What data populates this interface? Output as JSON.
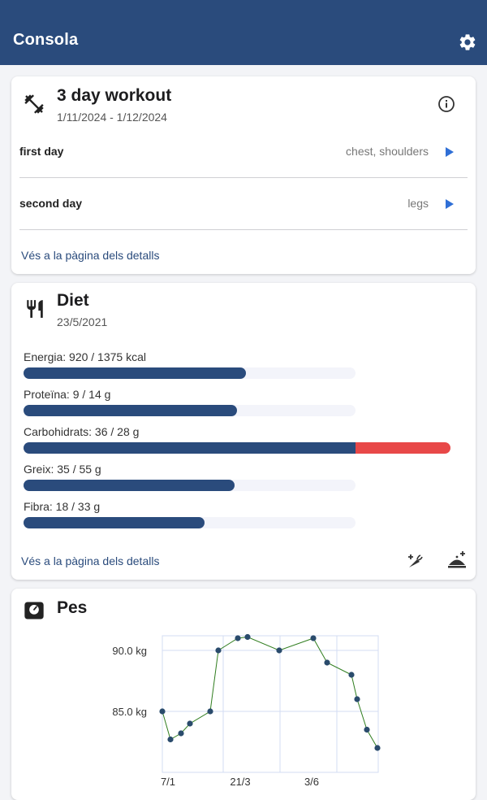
{
  "appbar": {
    "title": "Consola",
    "settings_icon": "gear-icon"
  },
  "workout": {
    "title": "3 day workout",
    "dates": "1/11/2024 - 1/12/2024",
    "icon": "dumbbell-icon",
    "info_icon": "info-icon",
    "days": [
      {
        "name": "first day",
        "muscles": "chest, shoulders"
      },
      {
        "name": "second day",
        "muscles": "legs"
      }
    ],
    "link": "Vés a la pàgina dels detalls"
  },
  "diet": {
    "title": "Diet",
    "date": "23/5/2021",
    "icon": "utensils-icon",
    "nutrients": [
      {
        "label": "Energia: 920 / 1375 kcal",
        "value": 920,
        "target": 1375
      },
      {
        "label": "Proteïna: 9 / 14 g",
        "value": 9,
        "target": 14
      },
      {
        "label": "Carbohidrats: 36 / 28 g",
        "value": 36,
        "target": 28
      },
      {
        "label": "Greix: 35 / 55 g",
        "value": 35,
        "target": 55
      },
      {
        "label": "Fibra: 18 / 33 g",
        "value": 18,
        "target": 33
      }
    ],
    "link": "Vés a la pàgina dels detalls",
    "action_icons": [
      "add-ingredient-icon",
      "add-meal-icon"
    ]
  },
  "weight": {
    "title": "Pes",
    "icon": "scale-icon",
    "chart_data": {
      "type": "line",
      "ylabels": [
        "90.0 kg",
        "85.0 kg"
      ],
      "yticks": [
        90.0,
        85.0
      ],
      "xlabels": [
        "7/1",
        "21/3",
        "3/6"
      ],
      "ylim": [
        80.0,
        91.2
      ],
      "series": [
        {
          "values": [
            85.0,
            82.7,
            83.2,
            84.0,
            85.0,
            90.0,
            91.0,
            91.1,
            90.0,
            91.0,
            89.0,
            88.0,
            86.0,
            83.5,
            82.0
          ]
        }
      ],
      "grid": true
    }
  }
}
